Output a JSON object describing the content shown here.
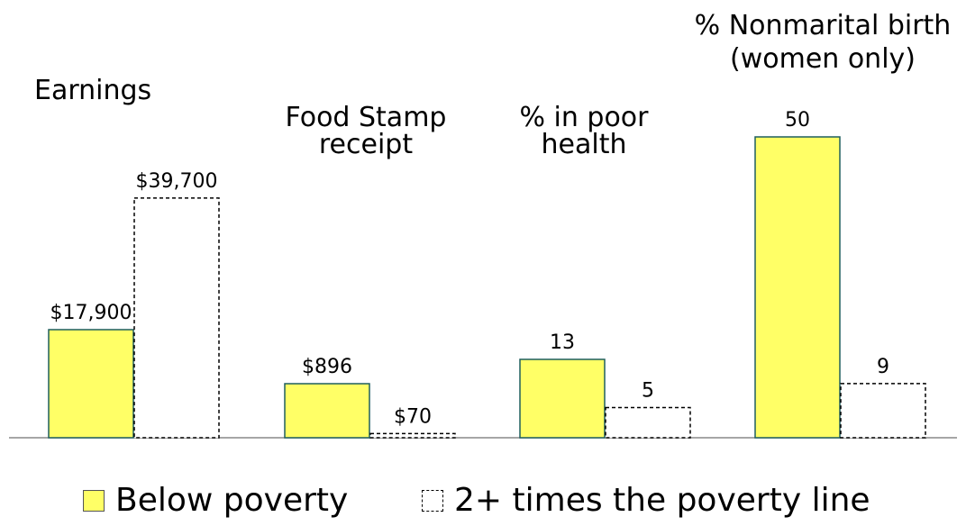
{
  "chart_data": {
    "type": "bar",
    "panels": [
      {
        "title_lines": [
          "Earnings"
        ],
        "labels": [
          "$17,900",
          "$39,700"
        ],
        "values": [
          17900,
          39700
        ]
      },
      {
        "title_lines": [
          "Food Stamp",
          "receipt"
        ],
        "labels": [
          "$896",
          "$70"
        ],
        "values": [
          896,
          70
        ]
      },
      {
        "title_lines": [
          "% in poor",
          "health"
        ],
        "labels": [
          "13",
          "5"
        ],
        "values": [
          13,
          5
        ]
      },
      {
        "title_lines": [
          "% Nonmarital birth",
          "(women only)"
        ],
        "labels": [
          "50",
          "9"
        ],
        "values": [
          50,
          9
        ]
      }
    ],
    "series": [
      {
        "name": "Below poverty",
        "color": "#ffff66",
        "border": "#1f5f5f",
        "style": "solid"
      },
      {
        "name": "2+ times the poverty line",
        "color": "#ffffff",
        "border": "#000000",
        "style": "dashed"
      }
    ],
    "grid": false,
    "legend_position": "bottom",
    "baseline_color": "#888888"
  }
}
